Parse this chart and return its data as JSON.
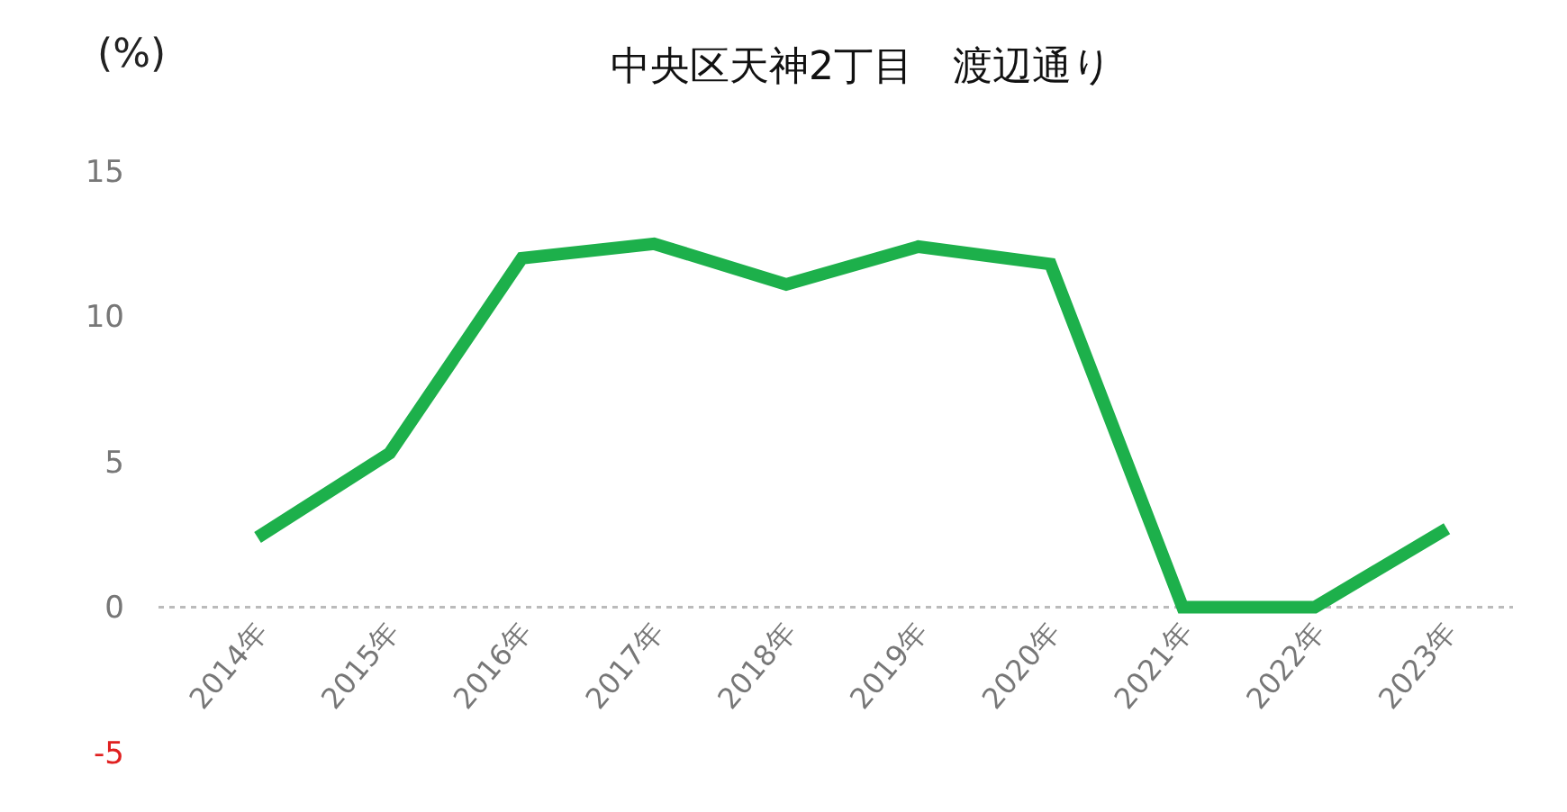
{
  "chart_data": {
    "type": "line",
    "title": "中央区天神2丁目　渡辺通り",
    "ylabel": "(%)",
    "categories": [
      "2014年",
      "2015年",
      "2016年",
      "2017年",
      "2018年",
      "2019年",
      "2020年",
      "2021年",
      "2022年",
      "2023年"
    ],
    "series": [
      {
        "color": "#1db04b",
        "values": [
          2.4,
          5.3,
          12.0,
          12.5,
          11.1,
          12.4,
          11.8,
          0,
          0,
          2.7
        ]
      }
    ],
    "ylim": [
      -5,
      15
    ],
    "yticks": [
      -5,
      0,
      5,
      10,
      15
    ],
    "grid": false,
    "marker": "none",
    "line_style": "solid",
    "ref_lines": [
      {
        "axis": "y",
        "value": 0,
        "color": "#bbbbbb",
        "line_style": "dotted"
      }
    ]
  }
}
